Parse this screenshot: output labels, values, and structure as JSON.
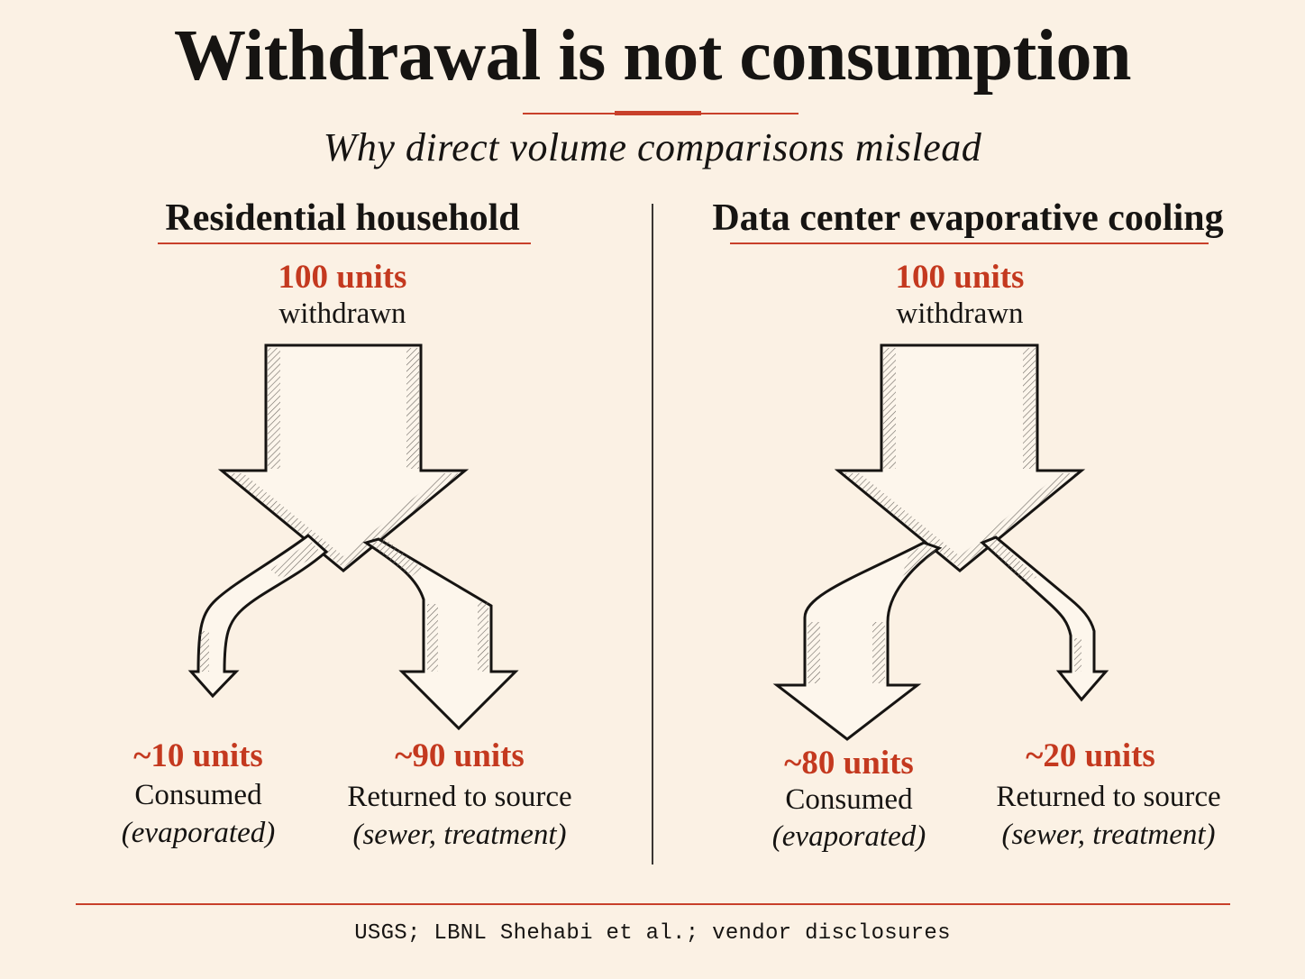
{
  "title": "Withdrawal is not consumption",
  "subtitle": "Why direct volume comparisons mislead",
  "panels": [
    {
      "heading": "Residential household",
      "withdrawn_quantity": "100 units",
      "withdrawn_label": "withdrawn",
      "consumed": {
        "quantity": "~10 units",
        "label": "Consumed",
        "note": "(evaporated)",
        "share": 10
      },
      "returned": {
        "quantity": "~90 units",
        "label": "Returned to source",
        "note": "(sewer, treatment)",
        "share": 90
      }
    },
    {
      "heading": "Data center evaporative cooling",
      "withdrawn_quantity": "100 units",
      "withdrawn_label": "withdrawn",
      "consumed": {
        "quantity": "~80 units",
        "label": "Consumed",
        "note": "(evaporated)",
        "share": 80
      },
      "returned": {
        "quantity": "~20 units",
        "label": "Returned to source",
        "note": "(sewer, treatment)",
        "share": 20
      }
    }
  ],
  "source": "USGS; LBNL Shehabi et al.; vendor disclosures",
  "colors": {
    "background": "#fbf1e4",
    "accent": "#c4391f",
    "ink": "#161412"
  }
}
